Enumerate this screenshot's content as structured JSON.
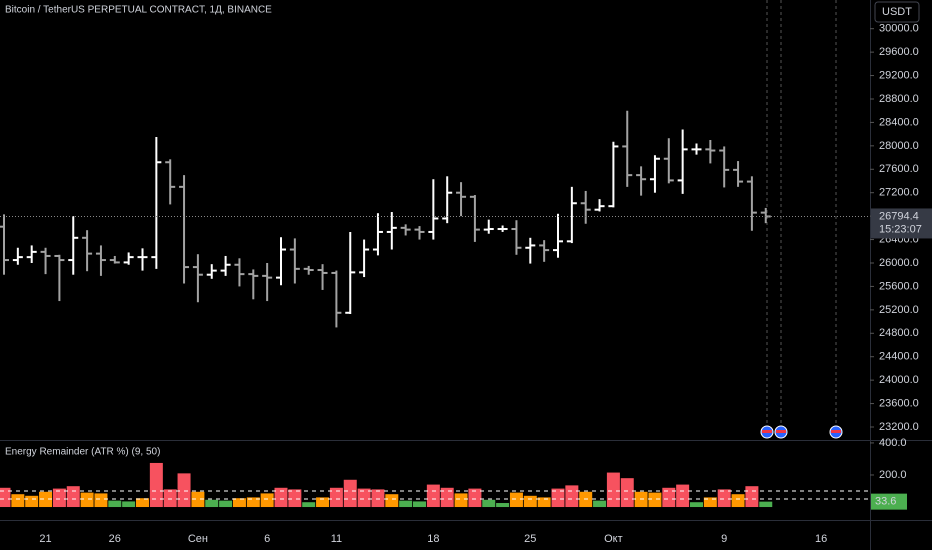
{
  "toolbar": {
    "currency": "USDT"
  },
  "chart_data": [
    {
      "type": "ohlc",
      "title": "Bitcoin / TetherUS PERPETUAL CONTRACT, 1Д, BINANCE",
      "categories": [
        null,
        null,
        null,
        "21",
        null,
        null,
        null,
        null,
        "26",
        null,
        null,
        null,
        null,
        null,
        "Сен",
        null,
        null,
        null,
        null,
        "6",
        null,
        null,
        null,
        null,
        "11",
        null,
        null,
        null,
        null,
        null,
        null,
        "18",
        null,
        null,
        null,
        null,
        null,
        null,
        "25",
        null,
        null,
        null,
        null,
        null,
        "Окт",
        null,
        null,
        null,
        null,
        null,
        null,
        null,
        "9",
        null,
        null,
        null,
        null,
        null,
        null,
        "16",
        null,
        null
      ],
      "open": [
        26620,
        26050,
        26100,
        26190,
        26120,
        26050,
        26430,
        26160,
        26050,
        26010,
        26100,
        26100,
        27720,
        27300,
        25930,
        25800,
        25870,
        25970,
        25810,
        25780,
        25750,
        26230,
        25900,
        25880,
        25830,
        25150,
        25840,
        26230,
        26530,
        26600,
        26570,
        26530,
        26760,
        27200,
        27130,
        26570,
        26580,
        26580,
        26260,
        26300,
        26220,
        26370,
        27020,
        26910,
        26970,
        27990,
        27500,
        27430,
        27780,
        27410,
        27940,
        27940,
        27920,
        27590,
        27390,
        26860,
        null,
        null,
        null,
        null,
        null,
        null
      ],
      "high": [
        26830,
        26260,
        26300,
        26260,
        26140,
        26800,
        26560,
        26300,
        26120,
        26180,
        26250,
        28150,
        27770,
        27500,
        26150,
        25980,
        26120,
        26080,
        25890,
        26000,
        26440,
        26420,
        25950,
        25980,
        25870,
        26530,
        26400,
        26850,
        26870,
        26660,
        26630,
        27430,
        27480,
        27380,
        27160,
        26740,
        26640,
        26730,
        26430,
        26390,
        26840,
        27300,
        27230,
        27090,
        28070,
        28600,
        27650,
        27840,
        28130,
        28280,
        28040,
        28100,
        27990,
        27740,
        27480,
        26940,
        null,
        null,
        null,
        null,
        null,
        null
      ],
      "low": [
        25800,
        25970,
        26000,
        25810,
        25350,
        25800,
        25860,
        25780,
        25990,
        25970,
        25870,
        25900,
        27000,
        25650,
        25330,
        25730,
        25780,
        25600,
        25380,
        25350,
        25620,
        25650,
        25800,
        25540,
        24900,
        25130,
        25760,
        26130,
        26230,
        26470,
        26400,
        26400,
        26680,
        26800,
        26360,
        26500,
        26530,
        26140,
        25990,
        26020,
        26090,
        26340,
        26670,
        26880,
        26950,
        27300,
        27150,
        27200,
        27360,
        27180,
        27850,
        27700,
        27290,
        27300,
        26550,
        26680,
        null,
        null,
        null,
        null,
        null,
        null
      ],
      "close": [
        26050,
        26100,
        26190,
        26120,
        26050,
        26430,
        26160,
        26050,
        26010,
        26100,
        26100,
        27720,
        27300,
        25930,
        25800,
        25870,
        25970,
        25810,
        25780,
        25750,
        26230,
        25900,
        25880,
        25830,
        25150,
        25840,
        26230,
        26530,
        26600,
        26570,
        26530,
        26760,
        27200,
        27130,
        26570,
        26580,
        26580,
        26260,
        26300,
        26220,
        26370,
        27020,
        26910,
        26970,
        27990,
        27500,
        27430,
        27780,
        27410,
        27940,
        27940,
        27920,
        27590,
        27390,
        26860,
        26794.4,
        null,
        null,
        null,
        null,
        null,
        null
      ],
      "up_color": "#ffffff",
      "down_color": "#a3a3a3",
      "last_price": 26794.4,
      "countdown": "15:23:07",
      "ylim": [
        22978,
        30490
      ],
      "yticks": [
        {
          "value": 30000,
          "label": "30000.0"
        },
        {
          "value": 29600,
          "label": "29600.0"
        },
        {
          "value": 29200,
          "label": "29200.0"
        },
        {
          "value": 28800,
          "label": "28800.0"
        },
        {
          "value": 28400,
          "label": "28400.0"
        },
        {
          "value": 28000,
          "label": "28000.0"
        },
        {
          "value": 27600,
          "label": "27600.0"
        },
        {
          "value": 27200,
          "label": "27200.0"
        },
        {
          "value": 26800,
          "label": "26800.0"
        },
        {
          "value": 26400,
          "label": "26400.0"
        },
        {
          "value": 26000,
          "label": "26000.0"
        },
        {
          "value": 25600,
          "label": "25600.0"
        },
        {
          "value": 25200,
          "label": "25200.0"
        },
        {
          "value": 24800,
          "label": "24800.0"
        },
        {
          "value": 24400,
          "label": "24400.0"
        },
        {
          "value": 24000,
          "label": "24000.0"
        },
        {
          "value": 23600,
          "label": "23600.0"
        },
        {
          "value": 23200,
          "label": "23200.0"
        }
      ]
    },
    {
      "type": "bar",
      "title": "Energy Remainder (ATR %) (9, 50)",
      "values": [
        120,
        80,
        70,
        95,
        115,
        130,
        90,
        85,
        40,
        35,
        55,
        275,
        110,
        210,
        95,
        45,
        40,
        55,
        60,
        85,
        120,
        110,
        30,
        60,
        120,
        170,
        115,
        110,
        80,
        40,
        35,
        140,
        120,
        85,
        115,
        45,
        25,
        90,
        70,
        60,
        115,
        135,
        95,
        40,
        215,
        180,
        95,
        90,
        120,
        140,
        30,
        60,
        110,
        80,
        130,
        33.6,
        null,
        null,
        null,
        null,
        null,
        null
      ],
      "levels": [
        100,
        50
      ],
      "colors": [
        "#f7525f",
        "#ff9800",
        "#4caf50"
      ],
      "ylim": [
        -81,
        412
      ],
      "yticks": [
        {
          "value": 400,
          "label": "400.0"
        },
        {
          "value": 200,
          "label": "200.0"
        }
      ]
    }
  ]
}
